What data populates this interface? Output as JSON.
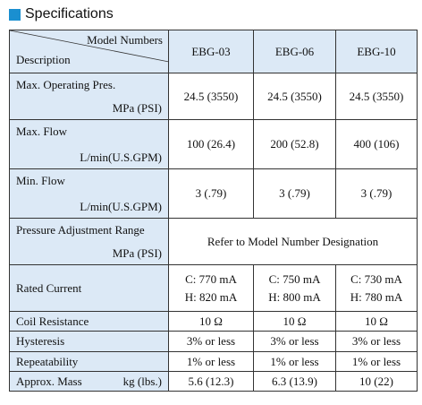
{
  "header": {
    "title": "Specifications"
  },
  "table": {
    "corner": {
      "top": "Model Numbers",
      "bottom": "Description"
    },
    "columns": [
      "EBG-03",
      "EBG-06",
      "EBG-10"
    ],
    "rows": [
      {
        "label": "Max. Operating Pres.",
        "unit": "MPa (PSI)",
        "values": [
          "24.5 (3550)",
          "24.5 (3550)",
          "24.5 (3550)"
        ]
      },
      {
        "label": "Max. Flow",
        "unit": "L/min(U.S.GPM)",
        "values": [
          "100 (26.4)",
          "200 (52.8)",
          "400 (106)"
        ]
      },
      {
        "label": "Min. Flow",
        "unit": "L/min(U.S.GPM)",
        "values": [
          "3 (.79)",
          "3 (.79)",
          "3 (.79)"
        ]
      },
      {
        "label": "Pressure Adjustment Range",
        "unit": "MPa (PSI)",
        "merged": "Refer to Model Number Designation"
      },
      {
        "label": "Rated Current",
        "values": [
          [
            "C: 770 mA",
            "H: 820 mA"
          ],
          [
            "C: 750 mA",
            "H: 800 mA"
          ],
          [
            "C: 730 mA",
            "H: 780 mA"
          ]
        ]
      },
      {
        "label": "Coil Resistance",
        "values": [
          "10 Ω",
          "10 Ω",
          "10 Ω"
        ]
      },
      {
        "label": "Hysteresis",
        "values": [
          "3% or less",
          "3% or less",
          "3% or less"
        ]
      },
      {
        "label": "Repeatability",
        "values": [
          "1% or less",
          "1% or less",
          "1% or less"
        ]
      },
      {
        "label": "Approx. Mass",
        "unit": "kg (lbs.)",
        "inline": true,
        "values": [
          "5.6 (12.3)",
          "6.3 (13.9)",
          "10 (22)"
        ]
      }
    ]
  }
}
